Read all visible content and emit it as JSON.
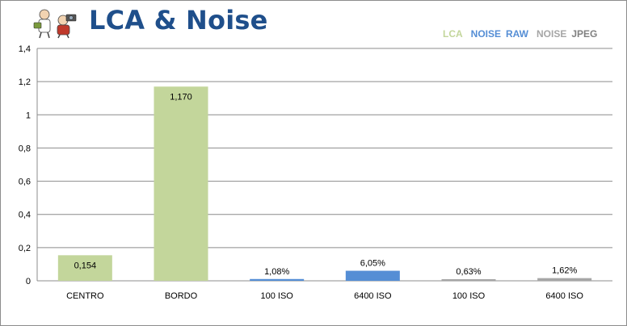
{
  "chart_data": {
    "type": "bar",
    "title": "LCA & Noise",
    "legend": [
      {
        "parts": [
          {
            "text": "LCA",
            "color": "#c3d69b"
          }
        ]
      },
      {
        "parts": [
          {
            "text": "NOISE",
            "color": "#558ed5"
          },
          {
            "text": "RAW",
            "color": "#558ed5"
          }
        ]
      },
      {
        "parts": [
          {
            "text": "NOISE",
            "color": "#a6a6a6"
          },
          {
            "text": "JPEG",
            "color": "#808080"
          }
        ]
      }
    ],
    "legend_position": "top-right",
    "categories": [
      "CENTRO",
      "BORDO",
      "100 ISO",
      "6400 ISO",
      "100 ISO",
      "6400 ISO"
    ],
    "values": [
      0.154,
      1.17,
      0.0108,
      0.0605,
      0.0063,
      0.0162
    ],
    "labels": [
      "0,154",
      "1,170",
      "1,08%",
      "6,05%",
      "0,63%",
      "1,62%"
    ],
    "colors": [
      "#c3d69b",
      "#c3d69b",
      "#558ed5",
      "#558ed5",
      "#a6a6a6",
      "#a6a6a6"
    ],
    "ylim": [
      0,
      1.4
    ],
    "yticks": [
      {
        "value": 0,
        "label": "0"
      },
      {
        "value": 0.2,
        "label": "0,2"
      },
      {
        "value": 0.4,
        "label": "0,4"
      },
      {
        "value": 0.6,
        "label": "0,6"
      },
      {
        "value": 0.8,
        "label": "0,8"
      },
      {
        "value": 1.0,
        "label": "1"
      },
      {
        "value": 1.2,
        "label": "1,2"
      },
      {
        "value": 1.4,
        "label": "1,4"
      }
    ],
    "grid": true
  },
  "logo_icon": "cartoon-photographers-icon"
}
